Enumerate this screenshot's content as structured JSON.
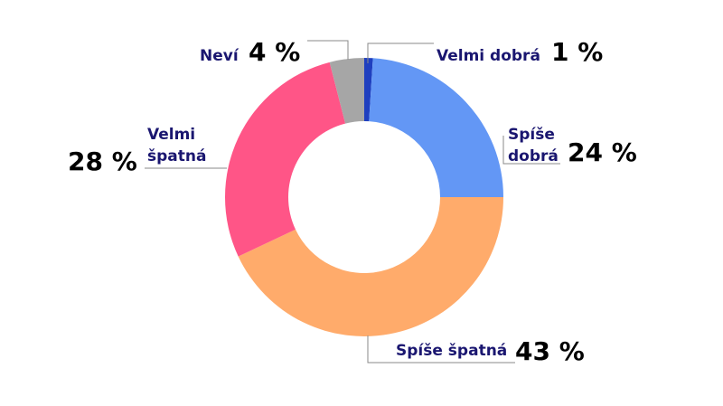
{
  "chart_data": {
    "type": "pie",
    "donut": true,
    "categories": [
      "Velmi dobrá",
      "Spíše dobrá",
      "Spíše špatná",
      "Velmi špatná",
      "Neví"
    ],
    "values": [
      1,
      24,
      43,
      28,
      4
    ],
    "unit": "%",
    "colors": [
      "#1f3fbf",
      "#6397f5",
      "#ffab6b",
      "#ff5587",
      "#a6a6a6"
    ],
    "labels": [
      {
        "lines": [
          "Velmi dobrá"
        ],
        "value": "1 %"
      },
      {
        "lines": [
          "Spíše",
          "dobrá"
        ],
        "value": "24 %"
      },
      {
        "lines": [
          "Spíše špatná"
        ],
        "value": "43 %"
      },
      {
        "lines": [
          "Velmi",
          "špatná"
        ],
        "value": "28 %"
      },
      {
        "lines": [
          "Neví"
        ],
        "value": "4 %"
      }
    ],
    "legend": "none",
    "grid": false
  }
}
